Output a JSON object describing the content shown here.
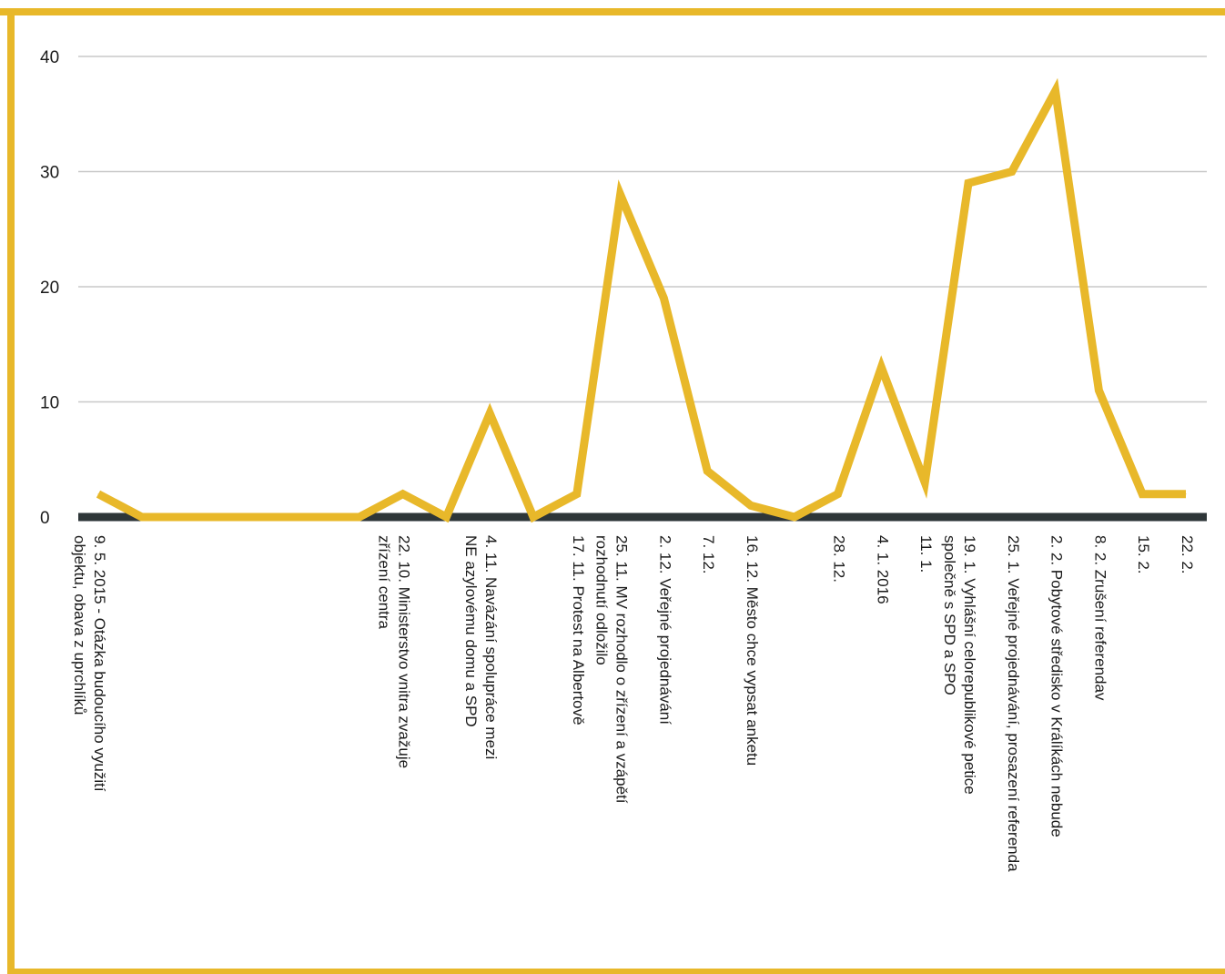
{
  "chart_data": {
    "type": "line",
    "title": "",
    "xlabel": "",
    "ylabel": "",
    "ylim": [
      0,
      40
    ],
    "yticks": [
      "0",
      "10",
      "20",
      "30",
      "40"
    ],
    "grid": true,
    "legend": "none",
    "line_color": "#e8b82a",
    "frame_color": "#e8b82a",
    "baseline_color": "#2e3638",
    "grid_color": "#c8c8c8",
    "categories": [
      [
        "9. 5. 2015 - Otázka budoucího využití",
        "objektu, obava z uprchlíků"
      ],
      [],
      [],
      [],
      [],
      [],
      [],
      [
        "22. 10. Ministerstvo vnitra zvažuje",
        "zřízení centra"
      ],
      [],
      [
        "4. 11. Navázání spolupráce mezi",
        "NE azylovému domu a SPD"
      ],
      [],
      [
        "17. 11. Protest na Albertově"
      ],
      [
        "25. 11. MV rozhodlo o zřízení a vzápětí",
        "rozhodnutí odložilo"
      ],
      [
        "2. 12. Veřejné projednávání"
      ],
      [
        "7. 12."
      ],
      [
        "16. 12. Město chce vypsat anketu"
      ],
      [],
      [
        "28. 12."
      ],
      [
        "4. 1. 2016"
      ],
      [
        "11. 1."
      ],
      [
        "19. 1. Vyhlášní celorepublikové petice",
        "společně s SPD a SPO"
      ],
      [
        "25. 1. Veřejné projednávání, prosazení referenda"
      ],
      [
        "2. 2. Pobytové středisko v Králíkách nebude"
      ],
      [
        "8. 2. Zrušení referendav"
      ],
      [
        "15. 2."
      ],
      [
        "22. 2."
      ]
    ],
    "values": [
      2,
      0,
      0,
      0,
      0,
      0,
      0,
      2,
      0,
      9,
      0,
      2,
      28,
      19,
      4,
      1,
      0,
      2,
      13,
      3,
      29,
      30,
      37,
      11,
      2,
      2
    ]
  }
}
